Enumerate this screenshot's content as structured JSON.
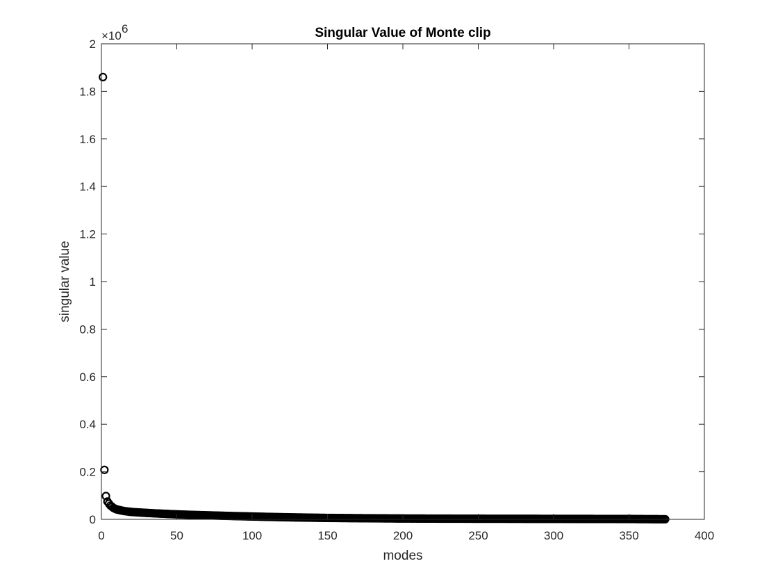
{
  "chart_data": {
    "type": "scatter",
    "title": "Singular Value of Monte clip",
    "xlabel": "modes",
    "ylabel": "singular value",
    "xlim": [
      0,
      400
    ],
    "ylim": [
      0,
      2000000
    ],
    "x_ticks": [
      0,
      50,
      100,
      150,
      200,
      250,
      300,
      350,
      400
    ],
    "y_ticks": [
      0,
      200000,
      400000,
      600000,
      800000,
      1000000,
      1200000,
      1400000,
      1600000,
      1800000,
      2000000
    ],
    "x_tick_labels": [
      "0",
      "50",
      "100",
      "150",
      "200",
      "250",
      "300",
      "350",
      "400"
    ],
    "y_tick_labels": [
      "0",
      "0.2",
      "0.4",
      "0.6",
      "0.8",
      "1",
      "1.2",
      "1.4",
      "1.6",
      "1.8",
      "2"
    ],
    "y_exponent_base": "×10",
    "y_exponent_power": "6",
    "marker": "circle-open",
    "marker_color": "#000000",
    "grid": false,
    "box": true,
    "n_points": 374,
    "leading_points": [
      {
        "x": 1,
        "y": 1860000
      },
      {
        "x": 2,
        "y": 208000
      },
      {
        "x": 3,
        "y": 98000
      },
      {
        "x": 4,
        "y": 75000
      },
      {
        "x": 5,
        "y": 66000
      },
      {
        "x": 6,
        "y": 58000
      },
      {
        "x": 7,
        "y": 53000
      },
      {
        "x": 8,
        "y": 48000
      },
      {
        "x": 10,
        "y": 42000
      },
      {
        "x": 15,
        "y": 35000
      },
      {
        "x": 20,
        "y": 31000
      },
      {
        "x": 30,
        "y": 27000
      },
      {
        "x": 50,
        "y": 21000
      },
      {
        "x": 75,
        "y": 16000
      },
      {
        "x": 100,
        "y": 12000
      },
      {
        "x": 150,
        "y": 6000
      },
      {
        "x": 200,
        "y": 3500
      },
      {
        "x": 250,
        "y": 2500
      },
      {
        "x": 300,
        "y": 2000
      },
      {
        "x": 350,
        "y": 1500
      },
      {
        "x": 374,
        "y": 500
      }
    ]
  }
}
